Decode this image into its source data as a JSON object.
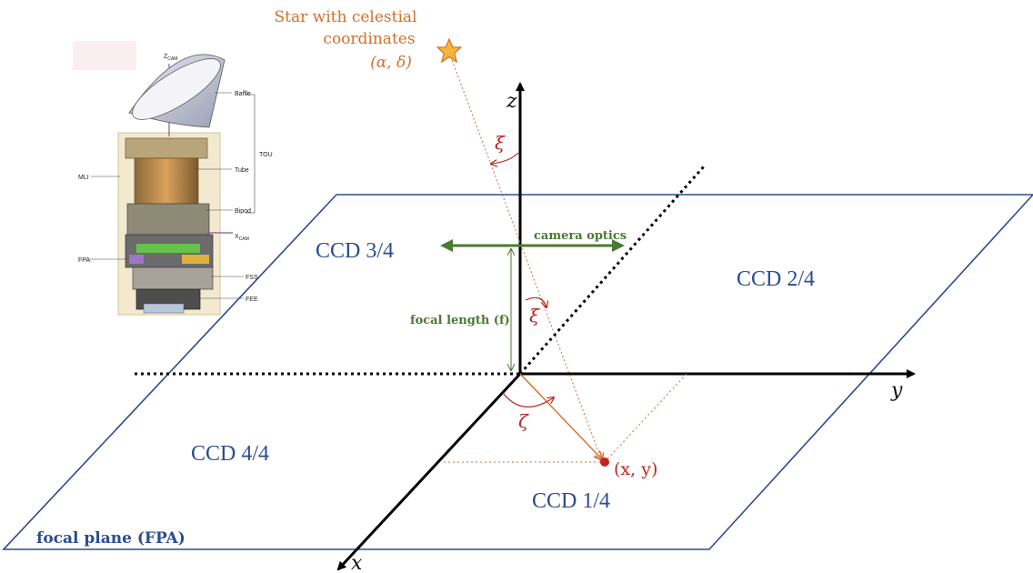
{
  "star": {
    "line1": "Star with celestial",
    "line2": "coordinates",
    "line3": "(α, δ)"
  },
  "axes": {
    "x": "x",
    "y": "y",
    "z": "z"
  },
  "angles": {
    "xi_top": "ξ",
    "xi_lower": "ξ",
    "zeta": "ζ"
  },
  "optics": {
    "camera_optics": "camera optics",
    "focal_length": "focal length (f)"
  },
  "ccd": {
    "ccd1": "CCD 1/4",
    "ccd2": "CCD 2/4",
    "ccd3": "CCD 3/4",
    "ccd4": "CCD 4/4"
  },
  "focal_plane": "focal plane (FPA)",
  "point": "(x, y)",
  "camera": {
    "z_cam": "Z",
    "z_cam_sub": "CAM",
    "x_cam": "X",
    "x_cam_sub": "CAM",
    "baffle": "Baffle",
    "tou": "TOU",
    "tube": "Tube",
    "mli": "MLI",
    "bipod": "Bipod",
    "fpa": "FPA",
    "fss": "FSS",
    "fee": "FEE"
  },
  "colors": {
    "plane_blue": "#2a4d8f",
    "optics_green": "#4a7a32",
    "star_orange": "#d4702a",
    "angle_red": "#c0241e"
  }
}
